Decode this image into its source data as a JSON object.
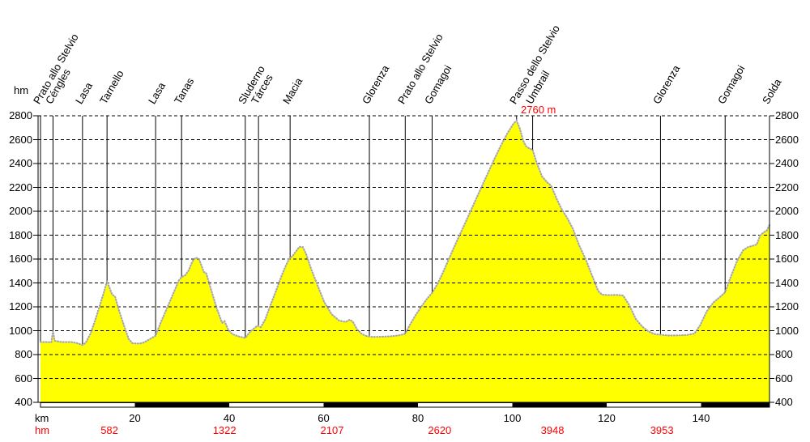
{
  "colors": {
    "fill": "#ffff00",
    "outline": "#a6a6b2",
    "grid": "#000000",
    "marker_line": "#000000",
    "annotation_red": "#ff0000",
    "background": "#ffffff"
  },
  "units": {
    "elevation_axis_label": "hm",
    "distance_axis_label": "km",
    "climb_row_label": "hm"
  },
  "chart_data": {
    "type": "area",
    "title": "",
    "xlabel": "km",
    "ylabel": "hm",
    "grid": true,
    "x_range_km": [
      0,
      154.5
    ],
    "y_range_m": [
      400,
      2800
    ],
    "y_ticks": [
      400,
      600,
      800,
      1000,
      1200,
      1400,
      1600,
      1800,
      2000,
      2200,
      2400,
      2600,
      2800
    ],
    "x_ticks_km": [
      20,
      40,
      60,
      80,
      100,
      120,
      140
    ],
    "peak": {
      "label": "2760 m",
      "km": 100.9,
      "elevation_m": 2760
    },
    "landmarks": [
      {
        "label": "Prato allo Stelvio",
        "km": 0
      },
      {
        "label": "Céngles",
        "km": 2.65
      },
      {
        "label": "Lasa",
        "km": 8.9
      },
      {
        "label": "Tarnello",
        "km": 14.1
      },
      {
        "label": "Lasa",
        "km": 24.4
      },
      {
        "label": "Tanas",
        "km": 29.9
      },
      {
        "label": "Sluderno",
        "km": 43.4
      },
      {
        "label": "Tárces",
        "km": 46.2
      },
      {
        "label": "Macia",
        "km": 52.9
      },
      {
        "label": "Glorenza",
        "km": 69.7
      },
      {
        "label": "Prato allo Stelvio",
        "km": 77.3
      },
      {
        "label": "Gomagoi",
        "km": 83.0
      },
      {
        "label": "Passo dello Stelvio",
        "km": 100.9
      },
      {
        "label": "Umbrail",
        "km": 104.3
      },
      {
        "label": "Glorenza",
        "km": 131.4
      },
      {
        "label": "Gomagoi",
        "km": 145.1
      },
      {
        "label": "Solda",
        "km": 154.5
      }
    ],
    "segment_climbs_hm": [
      {
        "value": "582",
        "km": 14.6
      },
      {
        "value": "1322",
        "km": 39.0
      },
      {
        "value": "2107",
        "km": 61.8
      },
      {
        "value": "2620",
        "km": 84.6
      },
      {
        "value": "3948",
        "km": 108.5
      },
      {
        "value": "3953",
        "km": 131.7
      }
    ],
    "profile_points_km_m": [
      [
        0,
        905
      ],
      [
        1.2,
        905
      ],
      [
        2.3,
        903
      ],
      [
        2.65,
        1000
      ],
      [
        3.0,
        915
      ],
      [
        4.5,
        905
      ],
      [
        6.5,
        905
      ],
      [
        7.5,
        898
      ],
      [
        8.2,
        890
      ],
      [
        8.9,
        880
      ],
      [
        9.6,
        900
      ],
      [
        10.6,
        975
      ],
      [
        11.6,
        1090
      ],
      [
        12.6,
        1215
      ],
      [
        13.5,
        1330
      ],
      [
        14.1,
        1415
      ],
      [
        14.5,
        1372
      ],
      [
        15.2,
        1302
      ],
      [
        15.8,
        1287
      ],
      [
        16.6,
        1175
      ],
      [
        17.6,
        1055
      ],
      [
        18.7,
        930
      ],
      [
        19.5,
        895
      ],
      [
        20.5,
        892
      ],
      [
        21.5,
        895
      ],
      [
        22.4,
        912
      ],
      [
        23.4,
        935
      ],
      [
        24.4,
        958
      ],
      [
        25.4,
        1060
      ],
      [
        26.7,
        1178
      ],
      [
        28.1,
        1308
      ],
      [
        29.3,
        1420
      ],
      [
        29.9,
        1450
      ],
      [
        30.7,
        1465
      ],
      [
        31.4,
        1505
      ],
      [
        32.2,
        1582
      ],
      [
        32.9,
        1612
      ],
      [
        33.6,
        1600
      ],
      [
        34.1,
        1548
      ],
      [
        34.6,
        1492
      ],
      [
        35.1,
        1483
      ],
      [
        36.2,
        1338
      ],
      [
        37.4,
        1180
      ],
      [
        38.5,
        1065
      ],
      [
        39.0,
        1080
      ],
      [
        39.8,
        1008
      ],
      [
        40.7,
        970
      ],
      [
        42.0,
        952
      ],
      [
        43.4,
        940
      ],
      [
        44.5,
        995
      ],
      [
        46.0,
        1043
      ],
      [
        46.7,
        1030
      ],
      [
        47.6,
        1092
      ],
      [
        48.6,
        1200
      ],
      [
        49.8,
        1322
      ],
      [
        51.1,
        1462
      ],
      [
        52.3,
        1572
      ],
      [
        52.9,
        1612
      ],
      [
        53.4,
        1624
      ],
      [
        54.2,
        1668
      ],
      [
        54.9,
        1703
      ],
      [
        55.6,
        1700
      ],
      [
        56.3,
        1642
      ],
      [
        57.4,
        1512
      ],
      [
        58.8,
        1372
      ],
      [
        60.1,
        1242
      ],
      [
        61.7,
        1138
      ],
      [
        63.3,
        1085
      ],
      [
        64.7,
        1073
      ],
      [
        65.5,
        1092
      ],
      [
        66.2,
        1075
      ],
      [
        67.1,
        1010
      ],
      [
        68.1,
        973
      ],
      [
        69.2,
        953
      ],
      [
        70.5,
        948
      ],
      [
        72.4,
        950
      ],
      [
        74.4,
        953
      ],
      [
        76.1,
        962
      ],
      [
        77.3,
        975
      ],
      [
        78.3,
        1050
      ],
      [
        79.5,
        1130
      ],
      [
        80.6,
        1196
      ],
      [
        81.8,
        1262
      ],
      [
        83.0,
        1318
      ],
      [
        84.2,
        1396
      ],
      [
        85.5,
        1506
      ],
      [
        87.0,
        1642
      ],
      [
        88.5,
        1772
      ],
      [
        90.0,
        1902
      ],
      [
        91.5,
        2032
      ],
      [
        93.0,
        2162
      ],
      [
        94.5,
        2292
      ],
      [
        96.0,
        2422
      ],
      [
        97.5,
        2546
      ],
      [
        99.0,
        2656
      ],
      [
        100.2,
        2732
      ],
      [
        100.9,
        2760
      ],
      [
        101.6,
        2692
      ],
      [
        102.3,
        2592
      ],
      [
        102.9,
        2546
      ],
      [
        103.5,
        2528
      ],
      [
        104.3,
        2515
      ],
      [
        105.2,
        2402
      ],
      [
        106.3,
        2292
      ],
      [
        107.4,
        2242
      ],
      [
        108.2,
        2216
      ],
      [
        109.3,
        2112
      ],
      [
        110.4,
        2022
      ],
      [
        111.6,
        1946
      ],
      [
        112.8,
        1856
      ],
      [
        114.2,
        1712
      ],
      [
        115.5,
        1602
      ],
      [
        116.8,
        1472
      ],
      [
        118.2,
        1332
      ],
      [
        119.0,
        1302
      ],
      [
        120.5,
        1298
      ],
      [
        122.2,
        1300
      ],
      [
        123.5,
        1294
      ],
      [
        124.8,
        1212
      ],
      [
        126.2,
        1096
      ],
      [
        127.6,
        1032
      ],
      [
        128.8,
        996
      ],
      [
        130.0,
        973
      ],
      [
        131.4,
        966
      ],
      [
        133.0,
        960
      ],
      [
        135.0,
        961
      ],
      [
        137.0,
        964
      ],
      [
        138.6,
        976
      ],
      [
        139.8,
        1046
      ],
      [
        141.2,
        1162
      ],
      [
        142.6,
        1236
      ],
      [
        144.0,
        1282
      ],
      [
        145.1,
        1322
      ],
      [
        146.2,
        1442
      ],
      [
        147.6,
        1582
      ],
      [
        148.9,
        1673
      ],
      [
        149.9,
        1700
      ],
      [
        151.0,
        1712
      ],
      [
        151.8,
        1722
      ],
      [
        152.5,
        1796
      ],
      [
        153.2,
        1822
      ],
      [
        153.9,
        1838
      ],
      [
        154.5,
        1885
      ]
    ]
  }
}
